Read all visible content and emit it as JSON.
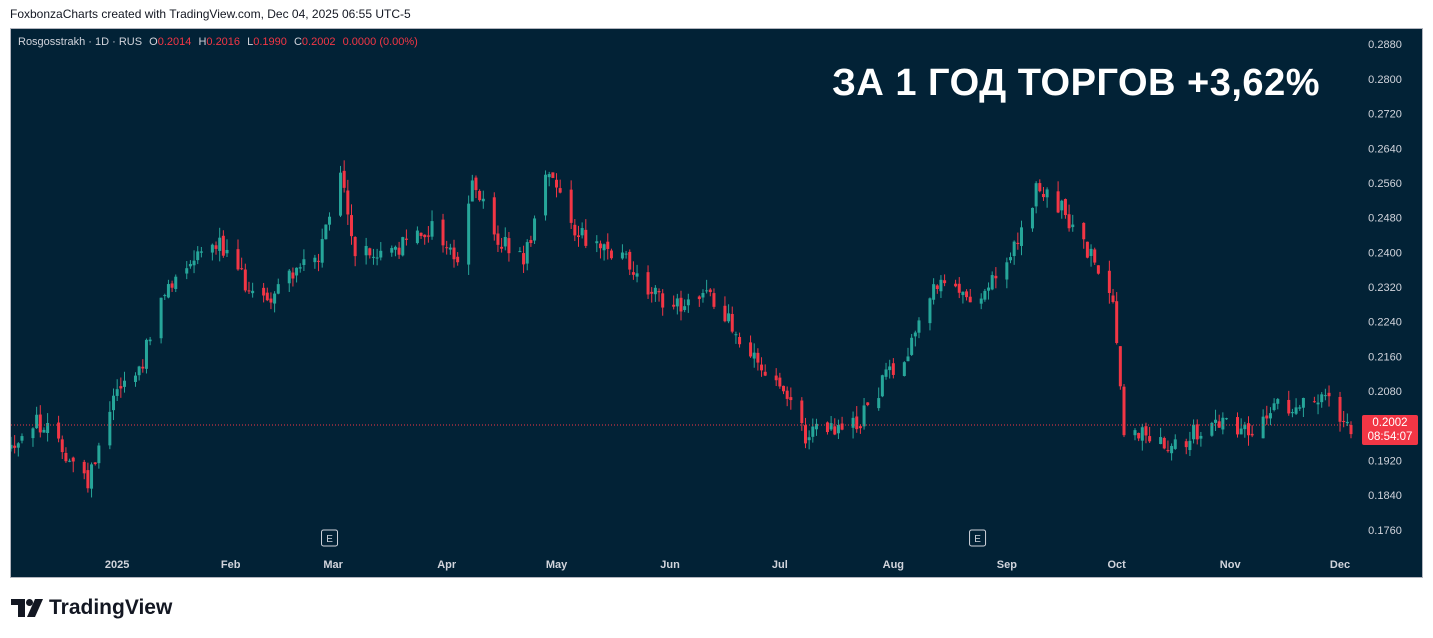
{
  "caption": "FoxbonzaCharts created with TradingView.com, Dec 04, 2025 06:55 UTC-5",
  "legend": {
    "symbol": "Rosgosstrakh · 1D · RUS",
    "o_label": "O",
    "o_value": "0.2014",
    "h_label": "H",
    "h_value": "0.2016",
    "l_label": "L",
    "l_value": "0.1990",
    "c_label": "C",
    "c_value": "0.2002",
    "change": "0.0000 (0.00%)"
  },
  "headline": "ЗА 1 ГОД ТОРГОВ +3,62%",
  "price_tag": {
    "price": "0.2002",
    "countdown": "08:54:07"
  },
  "logo_text": "TradingView",
  "colors": {
    "background": "#022236",
    "up": "#26a69a",
    "down": "#f23645",
    "text": "#d1d4dc"
  },
  "chart_data": {
    "type": "candlestick",
    "y_ticks": [
      "0.2880",
      "0.2800",
      "0.2720",
      "0.2640",
      "0.2560",
      "0.2480",
      "0.2400",
      "0.2320",
      "0.2240",
      "0.2160",
      "0.2080",
      "0.1920",
      "0.1840",
      "0.1760"
    ],
    "ylim": [
      0.1716,
      0.2915
    ],
    "x_ticks": [
      {
        "label": "2025",
        "date": "2025-01-01"
      },
      {
        "label": "Feb",
        "date": "2025-02-01"
      },
      {
        "label": "Mar",
        "date": "2025-03-01"
      },
      {
        "label": "Apr",
        "date": "2025-04-01"
      },
      {
        "label": "May",
        "date": "2025-05-01"
      },
      {
        "label": "Jun",
        "date": "2025-06-01"
      },
      {
        "label": "Jul",
        "date": "2025-07-01"
      },
      {
        "label": "Aug",
        "date": "2025-08-01"
      },
      {
        "label": "Sep",
        "date": "2025-09-01"
      },
      {
        "label": "Oct",
        "date": "2025-10-01"
      },
      {
        "label": "Nov",
        "date": "2025-11-01"
      },
      {
        "label": "Dec",
        "date": "2025-12-01"
      }
    ],
    "xlim": [
      "2024-12-03",
      "2025-12-04"
    ],
    "last_price": 0.2002,
    "events": [
      {
        "label": "E",
        "date": "2025-02-28"
      },
      {
        "label": "E",
        "date": "2025-08-24"
      }
    ],
    "close_path": [
      [
        "2024-12-03",
        0.1955
      ],
      [
        "2024-12-10",
        0.201
      ],
      [
        "2024-12-17",
        0.195
      ],
      [
        "2024-12-24",
        0.187
      ],
      [
        "2024-12-31",
        0.208
      ],
      [
        "2025-01-07",
        0.213
      ],
      [
        "2025-01-14",
        0.23
      ],
      [
        "2025-01-21",
        0.239
      ],
      [
        "2025-01-28",
        0.243
      ],
      [
        "2025-02-04",
        0.234
      ],
      [
        "2025-02-11",
        0.229
      ],
      [
        "2025-02-18",
        0.236
      ],
      [
        "2025-02-25",
        0.238
      ],
      [
        "2025-03-03",
        0.258
      ],
      [
        "2025-03-07",
        0.24
      ],
      [
        "2025-03-14",
        0.239
      ],
      [
        "2025-03-21",
        0.242
      ],
      [
        "2025-03-28",
        0.246
      ],
      [
        "2025-04-04",
        0.238
      ],
      [
        "2025-04-08",
        0.256
      ],
      [
        "2025-04-15",
        0.243
      ],
      [
        "2025-04-22",
        0.238
      ],
      [
        "2025-04-29",
        0.26
      ],
      [
        "2025-05-06",
        0.246
      ],
      [
        "2025-05-13",
        0.24
      ],
      [
        "2025-05-20",
        0.238
      ],
      [
        "2025-05-27",
        0.23
      ],
      [
        "2025-06-03",
        0.228
      ],
      [
        "2025-06-10",
        0.231
      ],
      [
        "2025-06-17",
        0.225
      ],
      [
        "2025-06-24",
        0.215
      ],
      [
        "2025-07-01",
        0.208
      ],
      [
        "2025-07-08",
        0.198
      ],
      [
        "2025-07-15",
        0.199
      ],
      [
        "2025-07-22",
        0.2
      ],
      [
        "2025-07-29",
        0.21
      ],
      [
        "2025-08-05",
        0.218
      ],
      [
        "2025-08-12",
        0.233
      ],
      [
        "2025-08-19",
        0.23
      ],
      [
        "2025-08-26",
        0.231
      ],
      [
        "2025-09-02",
        0.238
      ],
      [
        "2025-09-09",
        0.254
      ],
      [
        "2025-09-16",
        0.25
      ],
      [
        "2025-09-23",
        0.24
      ],
      [
        "2025-09-30",
        0.23
      ],
      [
        "2025-10-03",
        0.199
      ],
      [
        "2025-10-10",
        0.198
      ],
      [
        "2025-10-17",
        0.196
      ],
      [
        "2025-10-24",
        0.199
      ],
      [
        "2025-10-31",
        0.201
      ],
      [
        "2025-11-07",
        0.199
      ],
      [
        "2025-11-14",
        0.204
      ],
      [
        "2025-11-21",
        0.206
      ],
      [
        "2025-11-28",
        0.206
      ],
      [
        "2025-12-04",
        0.2002
      ]
    ]
  }
}
